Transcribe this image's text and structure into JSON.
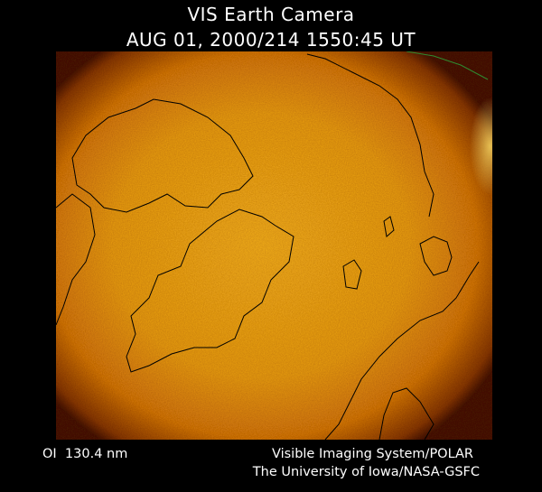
{
  "header": {
    "title": "VIS Earth Camera",
    "timestamp": "AUG 01, 2000/214 1550:45 UT"
  },
  "footer": {
    "filter": "OI  130.4 nm",
    "credit_line1": "Visible Imaging System/POLAR",
    "credit_line2": "The University of Iowa/NASA-GSFC"
  }
}
